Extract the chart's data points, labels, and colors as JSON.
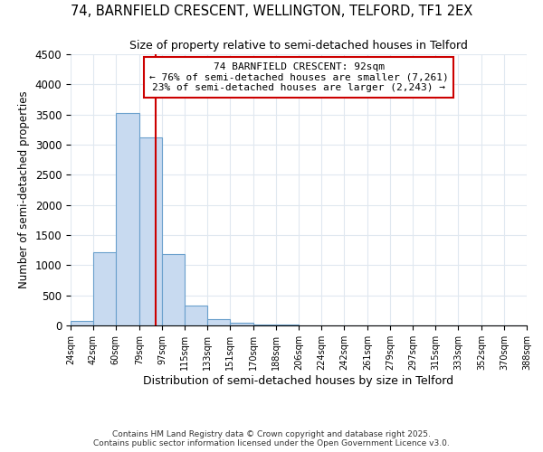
{
  "title": "74, BARNFIELD CRESCENT, WELLINGTON, TELFORD, TF1 2EX",
  "subtitle": "Size of property relative to semi-detached houses in Telford",
  "xlabel": "Distribution of semi-detached houses by size in Telford",
  "ylabel": "Number of semi-detached properties",
  "bar_color": "#c8daf0",
  "bar_edge_color": "#6aa0cc",
  "bin_edges": [
    24,
    42,
    60,
    79,
    97,
    115,
    133,
    151,
    170,
    188,
    206,
    224,
    242,
    261,
    279,
    297,
    315,
    333,
    352,
    370,
    388
  ],
  "bar_heights": [
    80,
    1220,
    3520,
    3120,
    1180,
    330,
    100,
    50,
    15,
    8,
    4,
    3,
    2,
    2,
    1,
    1,
    1,
    1,
    1,
    1
  ],
  "tick_labels": [
    "24sqm",
    "42sqm",
    "60sqm",
    "79sqm",
    "97sqm",
    "115sqm",
    "133sqm",
    "151sqm",
    "170sqm",
    "188sqm",
    "206sqm",
    "224sqm",
    "242sqm",
    "261sqm",
    "279sqm",
    "297sqm",
    "315sqm",
    "333sqm",
    "352sqm",
    "370sqm",
    "388sqm"
  ],
  "property_size": 92,
  "annotation_line1": "74 BARNFIELD CRESCENT: 92sqm",
  "annotation_line2": "← 76% of semi-detached houses are smaller (7,261)",
  "annotation_line3": "23% of semi-detached houses are larger (2,243) →",
  "red_line_color": "#cc0000",
  "annotation_box_color": "#ffffff",
  "annotation_box_edge": "#cc0000",
  "ylim": [
    0,
    4500
  ],
  "yticks": [
    0,
    500,
    1000,
    1500,
    2000,
    2500,
    3000,
    3500,
    4000,
    4500
  ],
  "footnote1": "Contains HM Land Registry data © Crown copyright and database right 2025.",
  "footnote2": "Contains public sector information licensed under the Open Government Licence v3.0.",
  "background_color": "#ffffff",
  "grid_color": "#e0e8f0"
}
